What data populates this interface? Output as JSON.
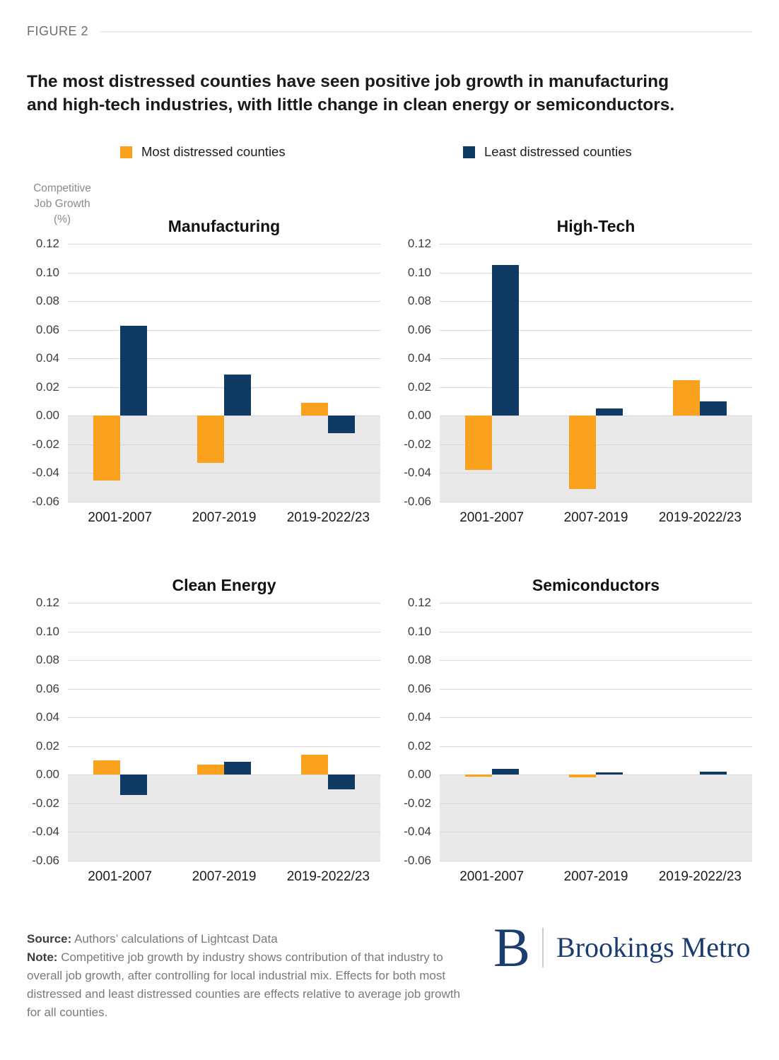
{
  "figure_label": "FIGURE 2",
  "title_lines": [
    "The most distressed counties have seen positive job growth in manufacturing",
    "and high-tech industries, with little change in clean energy or semiconductors."
  ],
  "legend": [
    {
      "label": "Most distressed counties",
      "color": "#FAA21D"
    },
    {
      "label": "Least distressed counties",
      "color": "#0E3A63"
    }
  ],
  "y_axis_note": "Competitive\nJob Growth\n(%)",
  "chart_data": {
    "type": "bar",
    "categories": [
      "2001-2007",
      "2007-2019",
      "2019-2022/23"
    ],
    "ylim": [
      -0.06,
      0.12
    ],
    "y_ticks": [
      0.12,
      0.1,
      0.08,
      0.06,
      0.04,
      0.02,
      0.0,
      -0.02,
      -0.04,
      -0.06
    ],
    "grid": true,
    "negative_region_color": "#E9E9E9",
    "legend_position": "top",
    "charts": [
      {
        "title": "Manufacturing",
        "series": [
          {
            "name": "Most distressed counties",
            "values": [
              -0.045,
              -0.033,
              0.009
            ]
          },
          {
            "name": "Least distressed counties",
            "values": [
              0.063,
              0.029,
              -0.012
            ]
          }
        ]
      },
      {
        "title": "High-Tech",
        "series": [
          {
            "name": "Most distressed counties",
            "values": [
              -0.038,
              -0.051,
              0.025
            ]
          },
          {
            "name": "Least distressed counties",
            "values": [
              0.105,
              0.005,
              0.01
            ]
          }
        ]
      },
      {
        "title": "Clean Energy",
        "series": [
          {
            "name": "Most distressed counties",
            "values": [
              0.01,
              0.007,
              0.014
            ]
          },
          {
            "name": "Least distressed counties",
            "values": [
              -0.014,
              0.009,
              -0.01
            ]
          }
        ]
      },
      {
        "title": "Semiconductors",
        "series": [
          {
            "name": "Most distressed counties",
            "values": [
              -0.0015,
              -0.002,
              0
            ]
          },
          {
            "name": "Least distressed counties",
            "values": [
              0.004,
              0.0015,
              0.002
            ]
          }
        ]
      }
    ]
  },
  "footer": {
    "source_label": "Source:",
    "source_text": "Authors’ calculations of Lightcast Data",
    "note_label": "Note:",
    "note_text": "Competitive job growth by industry shows contribution of that industry to overall job growth, after controlling for local industrial mix. Effects for both most distressed and least distressed counties are effects relative to average job growth for all counties."
  },
  "logo": {
    "mark": "B",
    "name": "Brookings Metro",
    "color": "#1B3C6E"
  }
}
